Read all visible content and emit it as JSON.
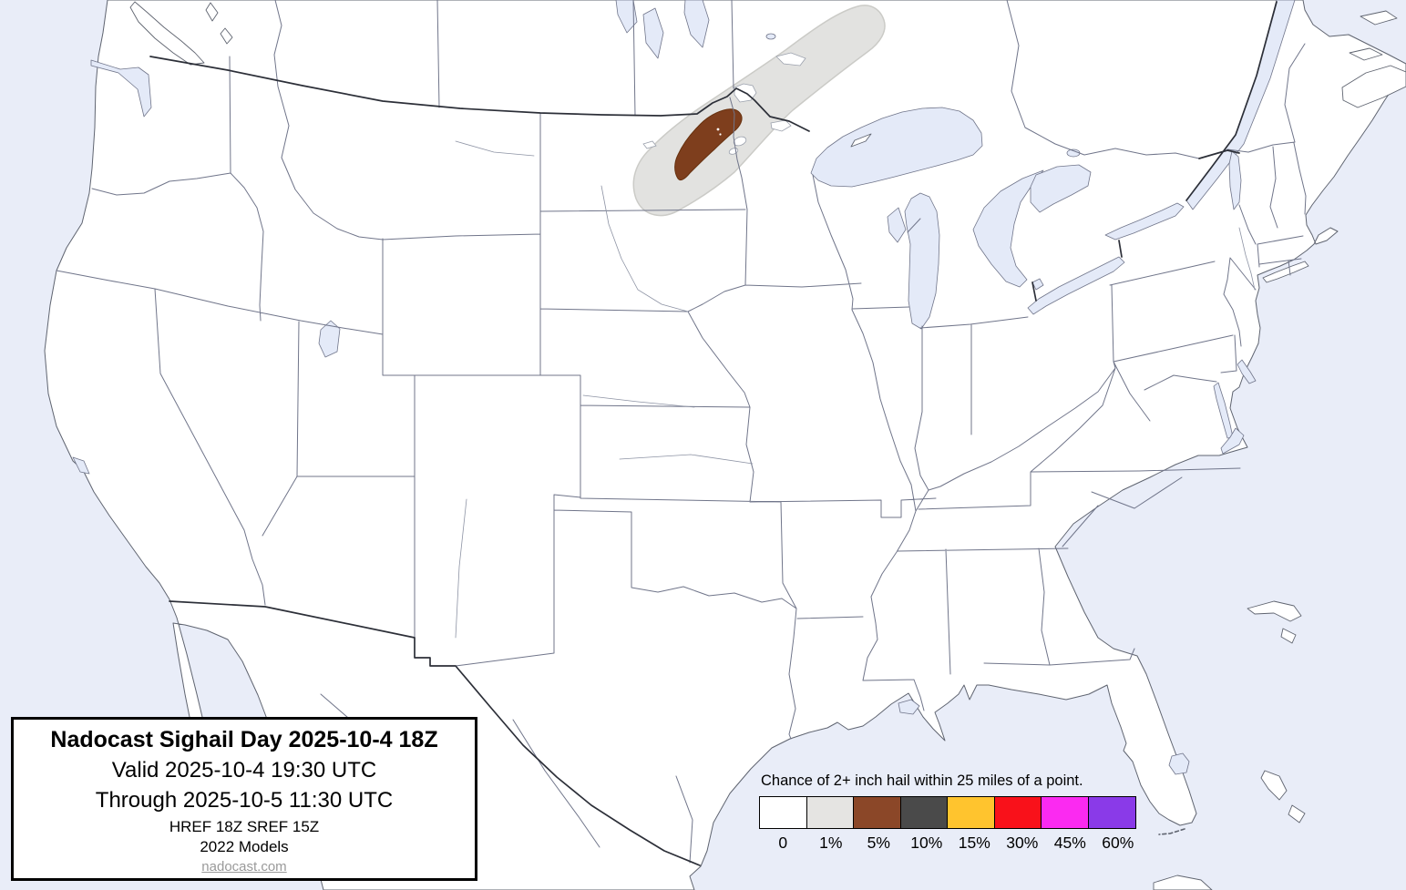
{
  "title_box": {
    "title": "Nadocast Sighail Day 2025-10-4 18Z",
    "valid_line": "Valid 2025-10-4 19:30 UTC",
    "through_line": "Through 2025-10-5 11:30 UTC",
    "models_line1": "HREF 18Z SREF 15Z",
    "models_line2": "2022 Models",
    "website": "nadocast.com"
  },
  "legend": {
    "title": "Chance of 2+ inch hail within 25 miles of a point.",
    "entries": [
      {
        "label": "0",
        "color": "#FFFFFF"
      },
      {
        "label": "1%",
        "color": "#E5E4E2"
      },
      {
        "label": "5%",
        "color": "#8B4728"
      },
      {
        "label": "10%",
        "color": "#4A4A4A"
      },
      {
        "label": "15%",
        "color": "#FFC42E"
      },
      {
        "label": "30%",
        "color": "#F9111A"
      },
      {
        "label": "45%",
        "color": "#FB2AF1"
      },
      {
        "label": "60%",
        "color": "#8A3AE8"
      }
    ]
  },
  "map": {
    "region": "Contiguous United States with southern Canada and northern Mexico",
    "water_color": "#E9EDF8",
    "land_color": "#FFFFFF",
    "lake_color": "#E4EAF8",
    "state_border_color": "#70758a",
    "national_border_color": "#2c2f38",
    "risk_areas": [
      {
        "level": "1%",
        "color": "#E2E2E0",
        "outline": "#CBCBC7",
        "location": "eastern North Dakota and northwestern Minnesota extending northeast into Manitoba and Ontario"
      },
      {
        "level": "5%",
        "color": "#7E3E1D",
        "outline": "#66310F",
        "location": "Red River Valley along the North Dakota / Minnesota border"
      }
    ]
  }
}
